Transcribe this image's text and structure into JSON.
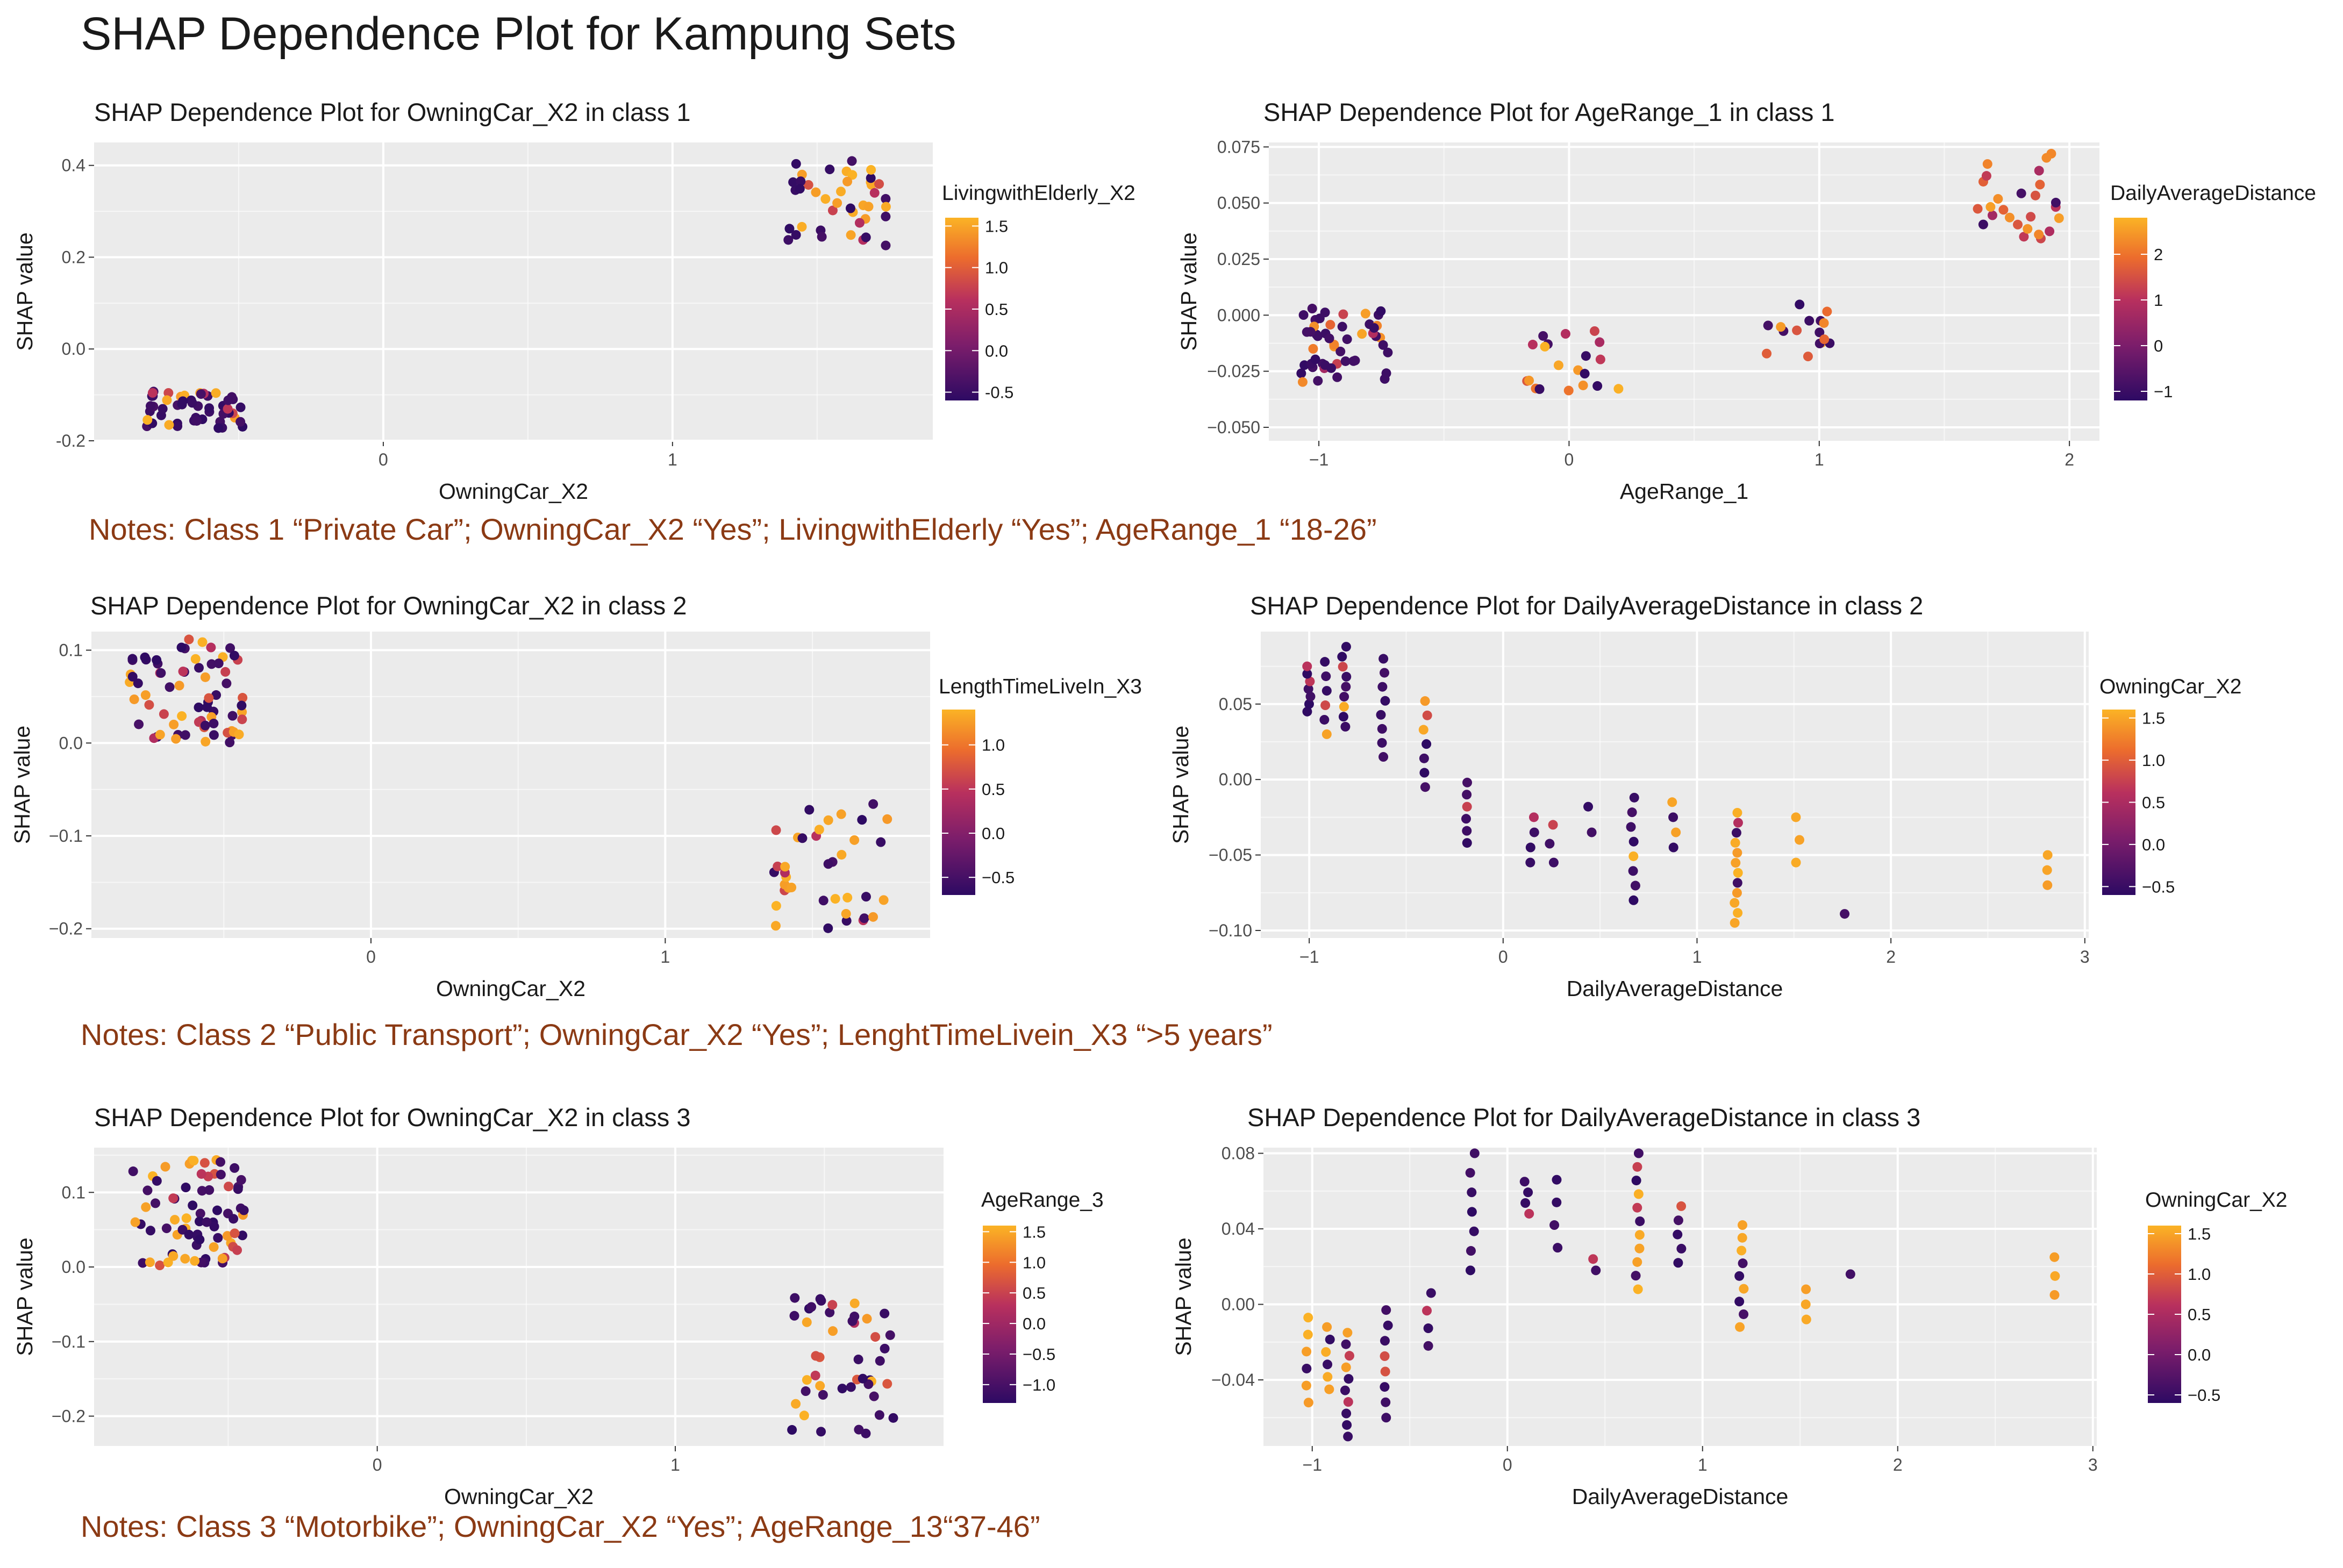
{
  "title": "SHAP Dependence Plot for Kampung Sets",
  "notes": [
    "Notes: Class 1 “Private Car”; OwningCar_X2 “Yes”; LivingwithElderly “Yes”; AgeRange_1 “18-26”",
    "Notes: Class 2 “Public Transport”;  OwningCar_X2 “Yes”; LenghtTimeLivein_X3 “>5 years”",
    "Notes: Class 3 “Motorbike”; OwningCar_X2 “Yes”; AgeRange_13“37-46”"
  ],
  "colors": {
    "panel_bg": "#ebebeb",
    "grid": "#ffffff",
    "low": "#2d0a63",
    "mid": "#b8305e",
    "high": "#fbb325",
    "note": "#8b3a14"
  },
  "chart_data": [
    {
      "type": "scatter",
      "title": "SHAP Dependence Plot for OwningCar_X2 in class 1",
      "xlabel": "OwningCar_X2",
      "ylabel": "SHAP value",
      "xlim": [
        -1.0,
        1.9
      ],
      "ylim": [
        -0.2,
        0.45
      ],
      "xticks": [
        0,
        1
      ],
      "yticks": [
        -0.2,
        0.0,
        0.2,
        0.4
      ],
      "ytick_labels": [
        "-0.2",
        "0.0",
        "0.2",
        "0.4"
      ],
      "color_label": "LivingwithElderly_X2",
      "color_range": [
        -0.6,
        1.6
      ],
      "color_ticks": [
        -0.5,
        0.0,
        0.5,
        1.0,
        1.5
      ],
      "color_tick_labels": [
        "-0.5",
        "0.0",
        "0.5",
        "1.0",
        "1.5"
      ],
      "clusters": [
        {
          "x": [
            -0.83,
            -0.48
          ],
          "y": [
            -0.175,
            -0.09
          ],
          "n": 52,
          "high_frac": 0.12,
          "seed": 11
        },
        {
          "x": [
            1.4,
            1.75
          ],
          "y": [
            0.22,
            0.41
          ],
          "n": 42,
          "high_frac": 0.3,
          "seed": 12
        }
      ]
    },
    {
      "type": "scatter",
      "title": "SHAP Dependence Plot for AgeRange_1 in class 1",
      "xlabel": "AgeRange_1",
      "ylabel": "SHAP value",
      "xlim": [
        -1.2,
        2.12
      ],
      "ylim": [
        -0.056,
        0.077
      ],
      "xticks": [
        -1,
        0,
        1,
        2
      ],
      "xtick_labels": [
        "−1",
        "0",
        "1",
        "2"
      ],
      "yticks": [
        -0.05,
        -0.025,
        0.0,
        0.025,
        0.05,
        0.075
      ],
      "ytick_labels": [
        "−0.050",
        "−0.025",
        "0.000",
        "0.025",
        "0.050",
        "0.075"
      ],
      "color_label": "DailyAverageDistance",
      "color_range": [
        -1.2,
        2.8
      ],
      "color_ticks": [
        -1,
        0,
        1,
        2
      ],
      "color_tick_labels": [
        "−1",
        "0",
        "1",
        "2"
      ],
      "clusters": [
        {
          "x": [
            -1.08,
            -0.72
          ],
          "y": [
            -0.03,
            0.003
          ],
          "n": 50,
          "low_frac": 0.7,
          "seed": 21
        },
        {
          "x": [
            -0.17,
            0.2
          ],
          "y": [
            -0.034,
            -0.007
          ],
          "n": 20,
          "low_frac": 0.2,
          "seed": 22
        },
        {
          "x": [
            0.76,
            1.05
          ],
          "y": [
            -0.022,
            0.006
          ],
          "n": 16,
          "low_frac": 0.4,
          "seed": 23
        },
        {
          "x": [
            1.62,
            1.96
          ],
          "y": [
            0.032,
            0.073
          ],
          "n": 26,
          "low_frac": 0.2,
          "seed": 24
        }
      ]
    },
    {
      "type": "scatter",
      "title": "SHAP Dependence Plot for OwningCar_X2 in class 2",
      "xlabel": "OwningCar_X2",
      "ylabel": "SHAP value",
      "xlim": [
        -0.95,
        1.9
      ],
      "ylim": [
        -0.21,
        0.12
      ],
      "xticks": [
        0,
        1
      ],
      "yticks": [
        -0.2,
        -0.1,
        0.0,
        0.1
      ],
      "ytick_labels": [
        "−0.2",
        "−0.1",
        "0.0",
        "0.1"
      ],
      "color_label": "LengthTimeLiveIn_X3",
      "color_range": [
        -0.7,
        1.4
      ],
      "color_ticks": [
        -0.5,
        0.0,
        0.5,
        1.0
      ],
      "color_tick_labels": [
        "−0.5",
        "0.0",
        "0.5",
        "1.0"
      ],
      "clusters": [
        {
          "x": [
            -0.82,
            -0.43
          ],
          "y": [
            0.0,
            0.115
          ],
          "n": 70,
          "high_frac": 0.3,
          "seed": 31
        },
        {
          "x": [
            1.37,
            1.77
          ],
          "y": [
            -0.2,
            -0.065
          ],
          "n": 38,
          "high_frac": 0.35,
          "seed": 32
        }
      ]
    },
    {
      "type": "scatter",
      "title": "SHAP Dependence Plot for DailyAverageDistance in class 2",
      "xlabel": "DailyAverageDistance",
      "ylabel": "SHAP value",
      "xlim": [
        -1.25,
        3.02
      ],
      "ylim": [
        -0.105,
        0.098
      ],
      "xticks": [
        -1,
        0,
        1,
        2,
        3
      ],
      "xtick_labels": [
        "−1",
        "0",
        "1",
        "2",
        "3"
      ],
      "yticks": [
        -0.1,
        -0.05,
        0.0,
        0.05
      ],
      "ytick_labels": [
        "−0.10",
        "−0.05",
        "0.00",
        "0.05"
      ],
      "color_label": "OwningCar_X2",
      "color_range": [
        -0.6,
        1.6
      ],
      "color_ticks": [
        -0.5,
        0.0,
        0.5,
        1.0,
        1.5
      ],
      "color_tick_labels": [
        "−0.5",
        "0.0",
        "0.5",
        "1.0",
        "1.5"
      ],
      "columns": [
        {
          "x": -1.0,
          "y": [
            0.045,
            0.075
          ],
          "n": 7,
          "high_frac": 0.15
        },
        {
          "x": -0.92,
          "y": [
            0.03,
            0.078
          ],
          "n": 6,
          "high_frac": 0.2
        },
        {
          "x": -0.82,
          "y": [
            0.035,
            0.088
          ],
          "n": 9,
          "high_frac": 0.1
        },
        {
          "x": -0.62,
          "y": [
            0.015,
            0.08
          ],
          "n": 8,
          "high_frac": 0.2
        },
        {
          "x": -0.4,
          "y": [
            -0.005,
            0.052
          ],
          "n": 7,
          "high_frac": 0.3
        },
        {
          "x": -0.18,
          "y": [
            -0.042,
            -0.002
          ],
          "n": 6,
          "high_frac": 0.0
        },
        {
          "x": 0.15,
          "y": [
            -0.055,
            -0.025
          ],
          "n": 4,
          "high_frac": 0.0
        },
        {
          "x": 0.25,
          "y": [
            -0.055,
            -0.03
          ],
          "n": 3,
          "high_frac": 0.0
        },
        {
          "x": 0.45,
          "y": [
            -0.035,
            -0.018
          ],
          "n": 2,
          "high_frac": 0.5
        },
        {
          "x": 0.67,
          "y": [
            -0.08,
            -0.012
          ],
          "n": 8,
          "high_frac": 0.4
        },
        {
          "x": 0.88,
          "y": [
            -0.045,
            -0.015
          ],
          "n": 4,
          "high_frac": 0.2
        },
        {
          "x": 1.2,
          "y": [
            -0.095,
            -0.022
          ],
          "n": 12,
          "high_frac": 0.55
        },
        {
          "x": 1.52,
          "y": [
            -0.055,
            -0.025
          ],
          "n": 3,
          "high_frac": 1.0
        },
        {
          "x": 1.75,
          "y": [
            -0.089,
            -0.089
          ],
          "n": 1,
          "high_frac": 0.0
        },
        {
          "x": 2.8,
          "y": [
            -0.07,
            -0.05
          ],
          "n": 3,
          "high_frac": 1.0
        }
      ]
    },
    {
      "type": "scatter",
      "title": "SHAP Dependence Plot for OwningCar_X2 in class 3",
      "xlabel": "OwningCar_X2",
      "ylabel": "SHAP value",
      "xlim": [
        -0.95,
        1.9
      ],
      "ylim": [
        -0.24,
        0.16
      ],
      "xticks": [
        0,
        1
      ],
      "yticks": [
        -0.2,
        -0.1,
        0.0,
        0.1
      ],
      "ytick_labels": [
        "−0.2",
        "−0.1",
        "0.0",
        "0.1"
      ],
      "color_label": "AgeRange_3",
      "color_range": [
        -1.3,
        1.6
      ],
      "color_ticks": [
        -1.0,
        -0.5,
        0.0,
        0.5,
        1.0,
        1.5
      ],
      "color_tick_labels": [
        "−1.0",
        "−0.5",
        "0.0",
        "0.5",
        "1.0",
        "1.5"
      ],
      "clusters": [
        {
          "x": [
            -0.82,
            -0.43
          ],
          "y": [
            0.0,
            0.145
          ],
          "n": 75,
          "high_frac": 0.35,
          "seed": 51
        },
        {
          "x": [
            1.38,
            1.77
          ],
          "y": [
            -0.225,
            -0.04
          ],
          "n": 45,
          "high_frac": 0.25,
          "seed": 52
        }
      ]
    },
    {
      "type": "scatter",
      "title": "SHAP Dependence Plot for DailyAverageDistance in class 3",
      "xlabel": "DailyAverageDistance",
      "ylabel": "SHAP value",
      "xlim": [
        -1.25,
        3.02
      ],
      "ylim": [
        -0.075,
        0.083
      ],
      "xticks": [
        -1,
        0,
        1,
        2,
        3
      ],
      "xtick_labels": [
        "−1",
        "0",
        "1",
        "2",
        "3"
      ],
      "yticks": [
        -0.04,
        0.0,
        0.04,
        0.08
      ],
      "ytick_labels": [
        "−0.04",
        "0.00",
        "0.04",
        "0.08"
      ],
      "color_label": "OwningCar_X2",
      "color_range": [
        -0.6,
        1.6
      ],
      "color_ticks": [
        -0.5,
        0.0,
        0.5,
        1.0,
        1.5
      ],
      "color_tick_labels": [
        "−0.5",
        "0.0",
        "0.5",
        "1.0",
        "1.5"
      ],
      "columns": [
        {
          "x": -1.03,
          "y": [
            -0.052,
            -0.007
          ],
          "n": 6,
          "high_frac": 0.3
        },
        {
          "x": -0.92,
          "y": [
            -0.045,
            -0.012
          ],
          "n": 6,
          "high_frac": 0.3
        },
        {
          "x": -0.82,
          "y": [
            -0.07,
            -0.015
          ],
          "n": 10,
          "high_frac": 0.1
        },
        {
          "x": -0.62,
          "y": [
            -0.06,
            -0.003
          ],
          "n": 8,
          "high_frac": 0.1
        },
        {
          "x": -0.4,
          "y": [
            -0.022,
            0.006
          ],
          "n": 4,
          "high_frac": 0.0
        },
        {
          "x": -0.18,
          "y": [
            0.018,
            0.08
          ],
          "n": 7,
          "high_frac": 0.0
        },
        {
          "x": 0.1,
          "y": [
            0.048,
            0.065
          ],
          "n": 4,
          "high_frac": 0.0
        },
        {
          "x": 0.25,
          "y": [
            0.03,
            0.066
          ],
          "n": 4,
          "high_frac": 0.0
        },
        {
          "x": 0.45,
          "y": [
            0.018,
            0.024
          ],
          "n": 2,
          "high_frac": 0.5
        },
        {
          "x": 0.67,
          "y": [
            0.008,
            0.08
          ],
          "n": 11,
          "high_frac": 0.45
        },
        {
          "x": 0.88,
          "y": [
            0.022,
            0.052
          ],
          "n": 5,
          "high_frac": 0.0
        },
        {
          "x": 1.2,
          "y": [
            -0.012,
            0.042
          ],
          "n": 9,
          "high_frac": 0.5
        },
        {
          "x": 1.52,
          "y": [
            -0.008,
            0.008
          ],
          "n": 3,
          "high_frac": 1.0
        },
        {
          "x": 1.75,
          "y": [
            0.016,
            0.016
          ],
          "n": 1,
          "high_frac": 0.0
        },
        {
          "x": 2.8,
          "y": [
            0.005,
            0.025
          ],
          "n": 3,
          "high_frac": 1.0
        }
      ]
    }
  ]
}
